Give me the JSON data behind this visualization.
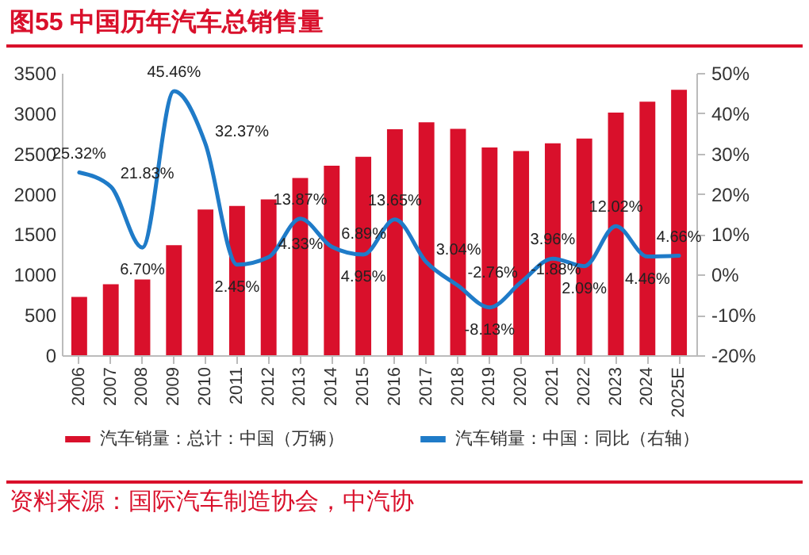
{
  "chart_data": {
    "type": "bar",
    "title": "图55  中国历年汽车总销售量",
    "categories": [
      "2006",
      "2007",
      "2008",
      "2009",
      "2010",
      "2011",
      "2012",
      "2013",
      "2014",
      "2015",
      "2016",
      "2017",
      "2018",
      "2019",
      "2020",
      "2021",
      "2022",
      "2023",
      "2024",
      "2025E"
    ],
    "series": [
      {
        "name": "汽车销量：总计：中国（万辆）",
        "color": "#d9102b",
        "values": [
          722,
          879,
          938,
          1365,
          1806,
          1851,
          1931,
          2198,
          2349,
          2460,
          2803,
          2888,
          2808,
          2577,
          2531,
          2628,
          2686,
          3009,
          3144,
          3290
        ]
      },
      {
        "name": "汽车销量：中国：同比（右轴）",
        "type": "line",
        "axis": "y2",
        "color": "#1f7bc8",
        "line_style": "solid",
        "values": [
          25.32,
          21.83,
          6.7,
          45.46,
          32.37,
          2.45,
          4.33,
          13.87,
          6.89,
          4.95,
          13.65,
          3.04,
          -2.76,
          -8.13,
          -1.88,
          3.96,
          2.09,
          12.02,
          4.46,
          4.66
        ],
        "value_labels": [
          "25.32%",
          "21.83%",
          "6.70%",
          "45.46%",
          "32.37%",
          "2.45%",
          "4.33%",
          "13.87%",
          "6.89%",
          "4.95%",
          "13.65%",
          "3.04%",
          "-2.76%",
          "-8.13%",
          "-1.88%",
          "3.96%",
          "2.09%",
          "12.02%",
          "4.46%",
          "4.66%"
        ]
      }
    ],
    "ylim": [
      0,
      3500
    ],
    "yticks": [
      0,
      500,
      1000,
      1500,
      2000,
      2500,
      3000,
      3500
    ],
    "y2lim": [
      -20,
      50
    ],
    "y2ticks": [
      {
        "value": -20,
        "label": "-20%"
      },
      {
        "value": -10,
        "label": "-10%"
      },
      {
        "value": 0,
        "label": "0%"
      },
      {
        "value": 10,
        "label": "10%"
      },
      {
        "value": 20,
        "label": "20%"
      },
      {
        "value": 30,
        "label": "30%"
      },
      {
        "value": 40,
        "label": "40%"
      },
      {
        "value": 50,
        "label": "50%"
      }
    ],
    "grid": false,
    "legend": "bottom",
    "annotations": [
      "资料来源：国际汽车制造协会，中汽协"
    ]
  }
}
